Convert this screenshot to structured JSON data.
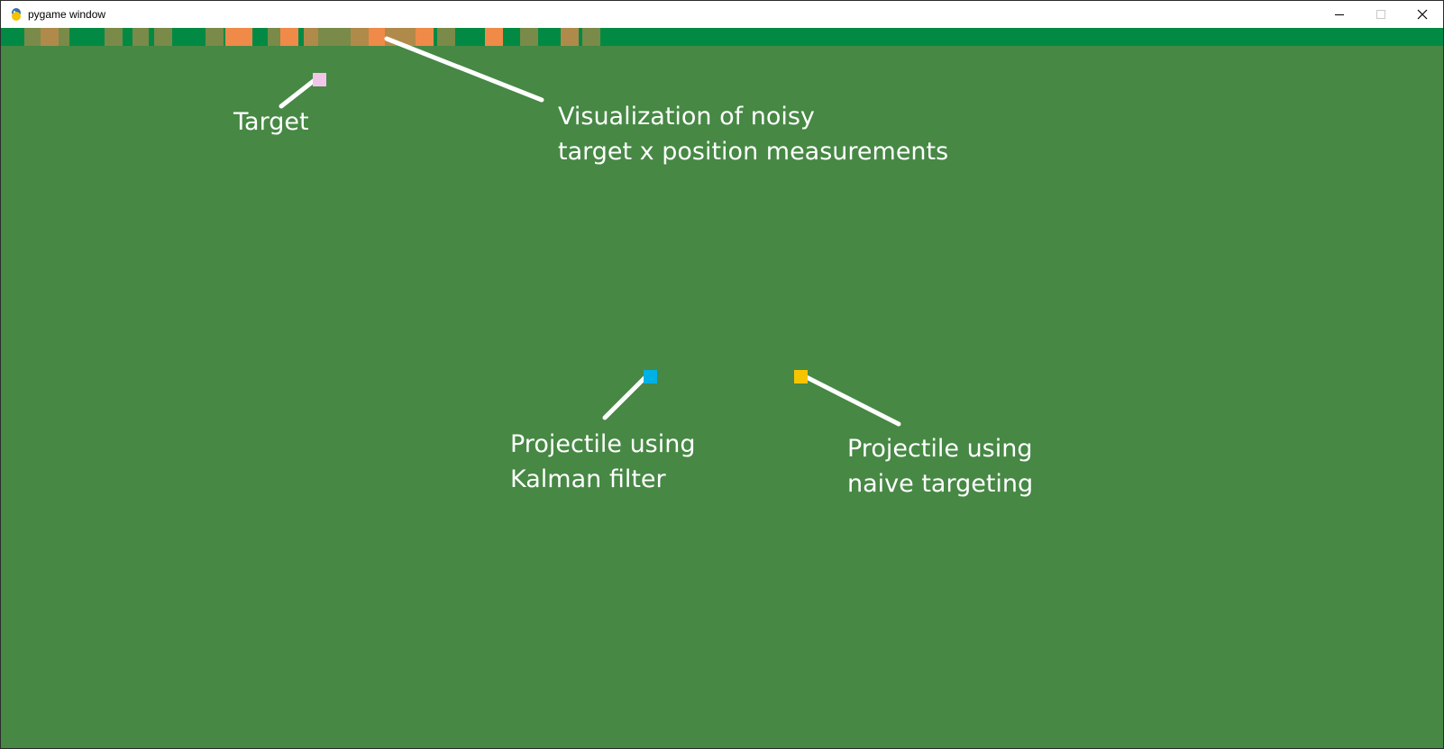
{
  "window": {
    "title": "pygame window",
    "icon": "pygame-snake-icon",
    "controls": [
      "minimize-icon",
      "maximize-icon",
      "close-icon"
    ]
  },
  "colors": {
    "background": "#468844",
    "strip_background": "#028a45",
    "measurement_dim": "#7a8a48",
    "measurement_mid": "#b08a4a",
    "measurement_bright": "#f08a48",
    "target": "#f1c6e8",
    "kalman_projectile": "#00b1e6",
    "naive_projectile": "#f7c400",
    "annotation": "#ffffff"
  },
  "measurements": [
    {
      "intensity": "dim"
    },
    {
      "intensity": "mid"
    },
    {
      "intensity": "dim"
    },
    {
      "intensity": "dim"
    },
    {
      "intensity": "dim"
    },
    {
      "intensity": "dim"
    },
    {
      "intensity": "dim"
    },
    {
      "intensity": "bright"
    },
    {
      "intensity": "dim"
    },
    {
      "intensity": "bright"
    },
    {
      "intensity": "mid"
    },
    {
      "intensity": "dim"
    },
    {
      "intensity": "dim"
    },
    {
      "intensity": "mid"
    },
    {
      "intensity": "bright"
    },
    {
      "intensity": "mid"
    },
    {
      "intensity": "bright"
    },
    {
      "intensity": "dim"
    },
    {
      "intensity": "bright"
    },
    {
      "intensity": "dim"
    },
    {
      "intensity": "mid"
    },
    {
      "intensity": "dim"
    }
  ],
  "annotations": {
    "target": {
      "line1": "Target"
    },
    "measurements": {
      "line1": "Visualization of noisy",
      "line2": "target x position measurements"
    },
    "kalman": {
      "line1": "Projectile using",
      "line2": "Kalman filter"
    },
    "naive": {
      "line1": "Projectile using",
      "line2": "naive targeting"
    }
  }
}
